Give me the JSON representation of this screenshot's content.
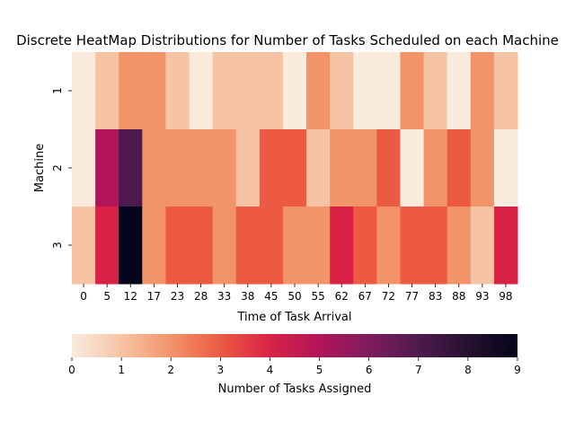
{
  "chart_data": {
    "type": "heatmap",
    "title": "Discrete HeatMap Distributions for Number of Tasks Scheduled on each Machine",
    "xlabel": "Time of Task Arrival",
    "ylabel": "Machine",
    "x": [
      "0",
      "5",
      "12",
      "17",
      "23",
      "28",
      "33",
      "38",
      "45",
      "50",
      "55",
      "62",
      "67",
      "72",
      "77",
      "83",
      "88",
      "93",
      "98"
    ],
    "y": [
      "1",
      "2",
      "3"
    ],
    "values": [
      [
        0,
        1,
        2,
        2,
        1,
        0,
        1,
        1,
        1,
        0,
        2,
        1,
        0,
        0,
        2,
        1,
        0,
        2,
        1
      ],
      [
        0,
        5,
        7,
        2,
        2,
        2,
        2,
        1,
        3,
        3,
        1,
        2,
        2,
        3,
        0,
        2,
        3,
        2,
        0
      ],
      [
        1,
        4,
        9,
        2,
        3,
        3,
        2,
        3,
        3,
        2,
        2,
        4,
        3,
        2,
        3,
        3,
        2,
        1,
        4
      ]
    ],
    "colorbar": {
      "label": "Number of Tasks Assigned",
      "ticks": [
        0,
        1,
        2,
        3,
        4,
        5,
        6,
        7,
        8,
        9
      ],
      "range": [
        0,
        9
      ],
      "orientation": "horizontal",
      "colormap": "rocket_r"
    },
    "grid": false
  }
}
